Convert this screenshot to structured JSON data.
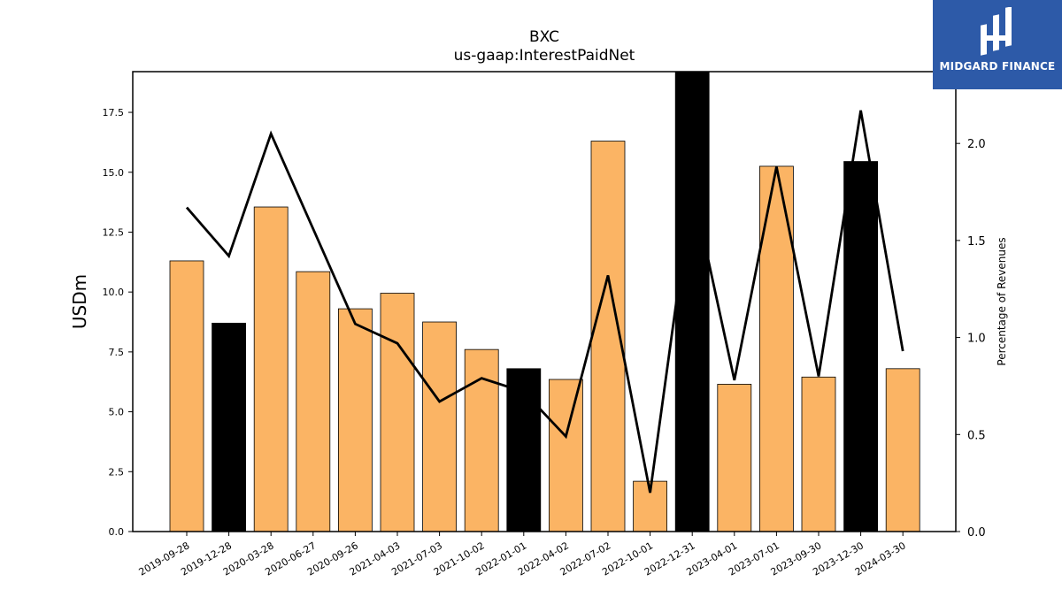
{
  "chart_data": {
    "type": "bar",
    "title": "BXC",
    "subtitle": "us-gaap:InterestPaidNet",
    "ylabel": "USDm",
    "y2label": "Percentage of Revenues",
    "ylim": [
      0,
      19.2
    ],
    "y2lim": [
      0,
      2.37
    ],
    "yticks": [
      "0.0",
      "2.5",
      "5.0",
      "7.5",
      "10.0",
      "12.5",
      "15.0",
      "17.5"
    ],
    "y2ticks": [
      "0.0",
      "0.5",
      "1.0",
      "1.5",
      "2.0"
    ],
    "categories": [
      "2019-09-28",
      "2019-12-28",
      "2020-03-28",
      "2020-06-27",
      "2020-09-26",
      "2021-04-03",
      "2021-07-03",
      "2021-10-02",
      "2022-01-01",
      "2022-04-02",
      "2022-07-02",
      "2022-10-01",
      "2022-12-31",
      "2023-04-01",
      "2023-07-01",
      "2023-09-30",
      "2023-12-30",
      "2024-03-30"
    ],
    "series": [
      {
        "type": "bar",
        "values": [
          11.3,
          8.7,
          13.55,
          10.85,
          9.3,
          9.95,
          8.75,
          7.6,
          6.8,
          6.35,
          16.3,
          2.1,
          19.2,
          6.15,
          15.25,
          6.45,
          15.45,
          6.8
        ],
        "colors": [
          "#fbb464",
          "#000000",
          "#fbb464",
          "#fbb464",
          "#fbb464",
          "#fbb464",
          "#fbb464",
          "#fbb464",
          "#000000",
          "#fbb464",
          "#fbb464",
          "#fbb464",
          "#000000",
          "#fbb464",
          "#fbb464",
          "#fbb464",
          "#000000",
          "#fbb464"
        ]
      },
      {
        "type": "line",
        "axis": "right",
        "color": "#000000",
        "values": [
          1.67,
          1.42,
          2.05,
          1.56,
          1.07,
          0.97,
          0.67,
          0.79,
          0.72,
          0.49,
          1.32,
          0.2,
          1.78,
          0.78,
          1.88,
          0.8,
          2.17,
          0.93
        ]
      }
    ]
  },
  "logo": {
    "text": "MIDGARD FINANCE",
    "color": "#2d5aa8"
  }
}
